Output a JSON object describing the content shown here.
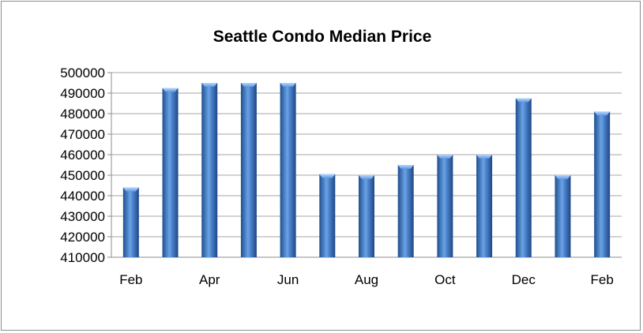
{
  "chart_data": {
    "type": "bar",
    "title": "Seattle Condo Median Price",
    "xlabel": "",
    "ylabel": "",
    "ylim": [
      410000,
      500000
    ],
    "yticks": [
      410000,
      420000,
      430000,
      440000,
      450000,
      460000,
      470000,
      480000,
      490000,
      500000
    ],
    "ytick_labels": [
      "410000",
      "420000",
      "430000",
      "440000",
      "450000",
      "460000",
      "470000",
      "480000",
      "490000",
      "500000"
    ],
    "categories": [
      "Feb",
      "",
      "Apr",
      "",
      "Jun",
      "",
      "Aug",
      "",
      "Oct",
      "",
      "Dec",
      "",
      "Feb"
    ],
    "values": [
      444000,
      492500,
      495000,
      495000,
      495000,
      450500,
      450000,
      455000,
      460000,
      460000,
      487500,
      450000,
      481000
    ],
    "grid": true,
    "legend": "none",
    "bar_color": "#4f81bd"
  }
}
